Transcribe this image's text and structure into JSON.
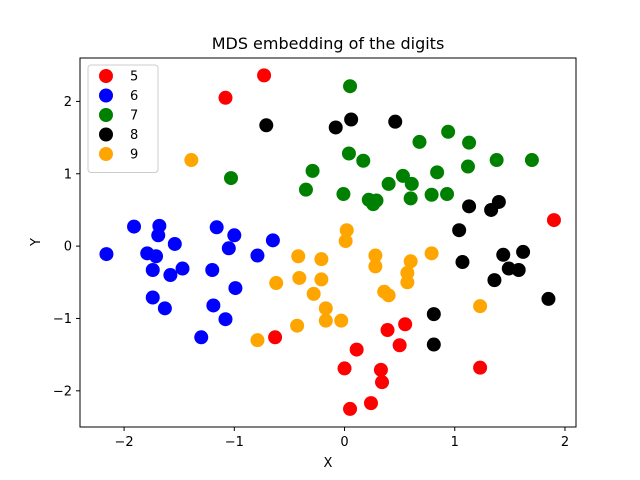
{
  "chart_data": {
    "type": "scatter",
    "title": "MDS embedding of the digits",
    "xlabel": "X",
    "ylabel": "Y",
    "xlim": [
      -2.4,
      2.1
    ],
    "ylim": [
      -2.5,
      2.6
    ],
    "xticks": [
      -2,
      -1,
      0,
      1,
      2
    ],
    "yticks": [
      -2,
      -1,
      0,
      1,
      2
    ],
    "xtick_labels": [
      "−2",
      "−1",
      "0",
      "1",
      "2"
    ],
    "ytick_labels": [
      "−2",
      "−1",
      "0",
      "1",
      "2"
    ],
    "grid": false,
    "legend_position": "top-left",
    "series": [
      {
        "name": "5",
        "color": "#ff0000",
        "points": [
          [
            -0.73,
            2.36
          ],
          [
            -1.08,
            2.05
          ],
          [
            1.9,
            0.36
          ],
          [
            -0.63,
            -1.26
          ],
          [
            0.39,
            -1.16
          ],
          [
            0.55,
            -1.08
          ],
          [
            0.11,
            -1.43
          ],
          [
            0.5,
            -1.37
          ],
          [
            0.0,
            -1.69
          ],
          [
            0.33,
            -1.71
          ],
          [
            0.34,
            -1.88
          ],
          [
            0.24,
            -2.17
          ],
          [
            0.05,
            -2.25
          ],
          [
            1.23,
            -1.68
          ]
        ]
      },
      {
        "name": "6",
        "color": "#0000ff",
        "points": [
          [
            -2.16,
            -0.11
          ],
          [
            -1.91,
            0.27
          ],
          [
            -1.68,
            0.28
          ],
          [
            -1.69,
            0.15
          ],
          [
            -1.79,
            -0.1
          ],
          [
            -1.71,
            -0.14
          ],
          [
            -1.74,
            -0.33
          ],
          [
            -1.54,
            0.03
          ],
          [
            -1.58,
            -0.4
          ],
          [
            -1.47,
            -0.31
          ],
          [
            -1.74,
            -0.71
          ],
          [
            -1.63,
            -0.86
          ],
          [
            -1.16,
            0.26
          ],
          [
            -1.0,
            0.15
          ],
          [
            -1.05,
            -0.03
          ],
          [
            -0.65,
            0.08
          ],
          [
            -0.79,
            -0.13
          ],
          [
            -1.2,
            -0.33
          ],
          [
            -0.99,
            -0.58
          ],
          [
            -1.19,
            -0.82
          ],
          [
            -1.08,
            -1.01
          ],
          [
            -1.3,
            -1.26
          ]
        ]
      },
      {
        "name": "7",
        "color": "#008000",
        "points": [
          [
            0.05,
            2.21
          ],
          [
            -1.03,
            0.94
          ],
          [
            0.04,
            1.28
          ],
          [
            0.17,
            1.18
          ],
          [
            0.68,
            1.44
          ],
          [
            0.94,
            1.58
          ],
          [
            1.13,
            1.43
          ],
          [
            1.38,
            1.19
          ],
          [
            1.7,
            1.19
          ],
          [
            0.84,
            1.02
          ],
          [
            1.12,
            1.1
          ],
          [
            -0.29,
            1.04
          ],
          [
            -0.35,
            0.78
          ],
          [
            -0.01,
            0.72
          ],
          [
            0.53,
            0.97
          ],
          [
            0.61,
            0.86
          ],
          [
            0.4,
            0.86
          ],
          [
            0.22,
            0.64
          ],
          [
            0.26,
            0.58
          ],
          [
            0.29,
            0.63
          ],
          [
            0.6,
            0.66
          ],
          [
            0.79,
            0.71
          ],
          [
            0.93,
            0.72
          ]
        ]
      },
      {
        "name": "8",
        "color": "#000000",
        "points": [
          [
            -0.71,
            1.67
          ],
          [
            -0.08,
            1.64
          ],
          [
            0.06,
            1.75
          ],
          [
            0.46,
            1.72
          ],
          [
            1.13,
            0.55
          ],
          [
            1.33,
            0.5
          ],
          [
            1.4,
            0.61
          ],
          [
            1.04,
            0.22
          ],
          [
            1.07,
            -0.22
          ],
          [
            1.44,
            -0.12
          ],
          [
            1.62,
            -0.08
          ],
          [
            1.49,
            -0.31
          ],
          [
            1.58,
            -0.33
          ],
          [
            1.36,
            -0.47
          ],
          [
            1.85,
            -0.73
          ],
          [
            0.81,
            -0.94
          ],
          [
            0.81,
            -1.36
          ]
        ]
      },
      {
        "name": "9",
        "color": "#ffa500",
        "points": [
          [
            -1.39,
            1.19
          ],
          [
            0.02,
            0.22
          ],
          [
            0.01,
            0.07
          ],
          [
            -0.42,
            -0.14
          ],
          [
            -0.21,
            -0.18
          ],
          [
            0.28,
            -0.13
          ],
          [
            0.28,
            -0.28
          ],
          [
            0.6,
            -0.21
          ],
          [
            0.79,
            -0.1
          ],
          [
            -0.62,
            -0.51
          ],
          [
            -0.41,
            -0.44
          ],
          [
            -0.21,
            -0.46
          ],
          [
            0.57,
            -0.37
          ],
          [
            0.57,
            -0.5
          ],
          [
            -0.28,
            -0.66
          ],
          [
            0.36,
            -0.63
          ],
          [
            0.4,
            -0.68
          ],
          [
            -0.17,
            -0.86
          ],
          [
            -0.17,
            -1.03
          ],
          [
            -0.03,
            -1.03
          ],
          [
            -0.43,
            -1.1
          ],
          [
            1.23,
            -0.83
          ],
          [
            -0.79,
            -1.3
          ]
        ]
      }
    ]
  }
}
